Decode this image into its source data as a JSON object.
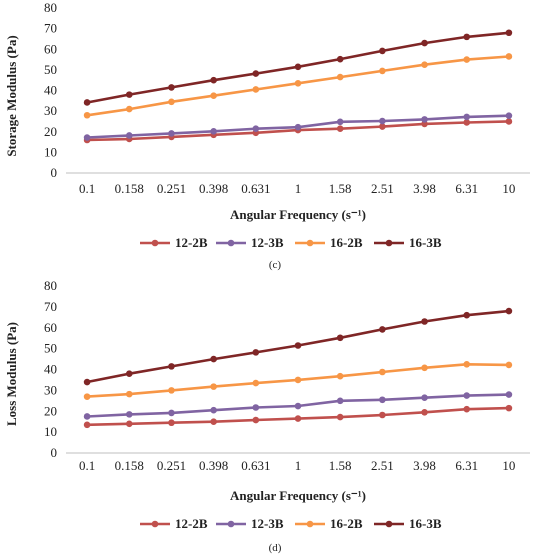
{
  "chart_data": [
    {
      "type": "line",
      "caption": "(c)",
      "xlabel": "Angular Frequency (s⁻¹)",
      "ylabel": "Storage Modulus (Pa)",
      "ylim": [
        0,
        80
      ],
      "yticks": [
        0,
        10,
        20,
        30,
        40,
        50,
        60,
        70,
        80
      ],
      "categories": [
        "0.1",
        "0.158",
        "0.251",
        "0.398",
        "0.631",
        "1",
        "1.58",
        "2.51",
        "3.98",
        "6.31",
        "10"
      ],
      "grid": false,
      "legend": "bottom",
      "series": [
        {
          "name": "12-2B",
          "color": "#c0504d",
          "values": [
            16,
            16.5,
            17.5,
            18.5,
            19.5,
            20.8,
            21.5,
            22.5,
            23.8,
            24.5,
            25
          ]
        },
        {
          "name": "12-3B",
          "color": "#8064a2",
          "values": [
            17.2,
            18.2,
            19.2,
            20.2,
            21.5,
            22.2,
            24.8,
            25.2,
            26,
            27.2,
            27.8
          ]
        },
        {
          "name": "16-2B",
          "color": "#f79646",
          "values": [
            28,
            31,
            34.5,
            37.5,
            40.5,
            43.5,
            46.5,
            49.5,
            52.5,
            55,
            56.5
          ]
        },
        {
          "name": "16-3B",
          "color": "#7f2626",
          "values": [
            34.2,
            38,
            41.5,
            45,
            48.2,
            51.5,
            55.2,
            59.2,
            63,
            66,
            68
          ]
        }
      ]
    },
    {
      "type": "line",
      "caption": "(d)",
      "xlabel": "Angular Frequency (s⁻¹)",
      "ylabel": "Loss Modulus (Pa)",
      "ylim": [
        0,
        80
      ],
      "yticks": [
        0,
        10,
        20,
        30,
        40,
        50,
        60,
        70,
        80
      ],
      "categories": [
        "0.1",
        "0.158",
        "0.251",
        "0.398",
        "0.631",
        "1",
        "1.58",
        "2.51",
        "3.98",
        "6.31",
        "10"
      ],
      "grid": false,
      "legend": "bottom",
      "series": [
        {
          "name": "12-2B",
          "color": "#c0504d",
          "values": [
            13.5,
            14,
            14.5,
            15,
            15.8,
            16.5,
            17.2,
            18.2,
            19.5,
            21,
            21.5
          ]
        },
        {
          "name": "12-3B",
          "color": "#8064a2",
          "values": [
            17.5,
            18.5,
            19.2,
            20.5,
            21.8,
            22.5,
            25,
            25.5,
            26.5,
            27.5,
            28
          ]
        },
        {
          "name": "16-2B",
          "color": "#f79646",
          "values": [
            27,
            28.2,
            30,
            31.8,
            33.5,
            35,
            36.8,
            38.8,
            40.8,
            42.5,
            42.2
          ]
        },
        {
          "name": "16-3B",
          "color": "#7f2626",
          "values": [
            34,
            38,
            41.5,
            45,
            48.2,
            51.5,
            55.2,
            59.2,
            63,
            66,
            68
          ]
        }
      ]
    }
  ]
}
